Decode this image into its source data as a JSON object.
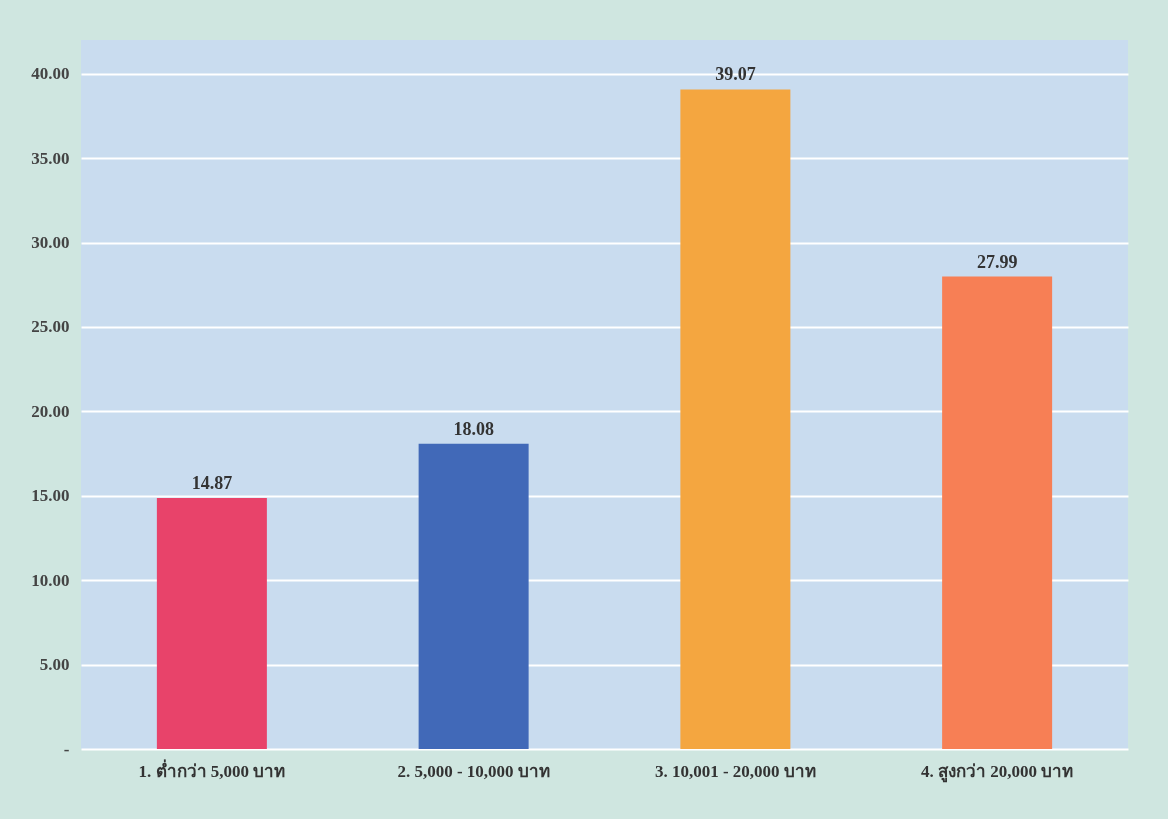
{
  "chart_data": {
    "type": "bar",
    "categories": [
      "1. ต่ำกว่า 5,000 บาท",
      "2. 5,000 - 10,000 บาท",
      "3. 10,001 - 20,000 บาท",
      "4. สูงกว่า 20,000 บาท"
    ],
    "values": [
      14.87,
      18.08,
      39.07,
      27.99
    ],
    "colors": [
      "#e8436a",
      "#4169b8",
      "#f4a640",
      "#f77f55"
    ],
    "ylim": [
      0,
      42
    ],
    "yticks": [
      {
        "value": 0,
        "label": "-"
      },
      {
        "value": 5,
        "label": "5.00"
      },
      {
        "value": 10,
        "label": "10.00"
      },
      {
        "value": 15,
        "label": "15.00"
      },
      {
        "value": 20,
        "label": "20.00"
      },
      {
        "value": 25,
        "label": "25.00"
      },
      {
        "value": 30,
        "label": "30.00"
      },
      {
        "value": 35,
        "label": "35.00"
      },
      {
        "value": 40,
        "label": "40.00"
      }
    ],
    "grid": "y",
    "data_labels": true,
    "legend": false
  }
}
